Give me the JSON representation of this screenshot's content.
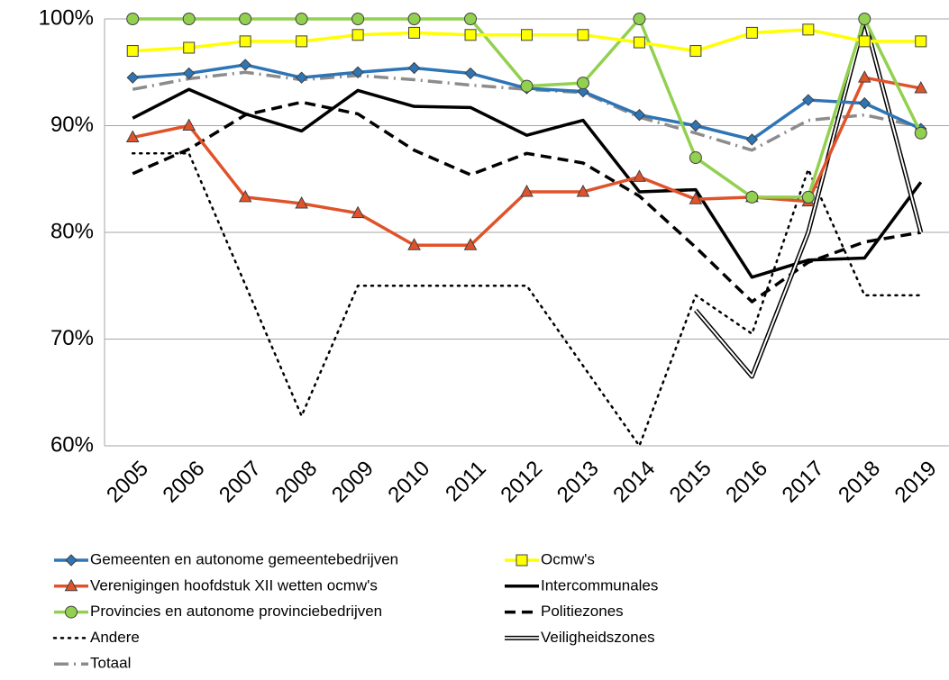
{
  "chart_data": {
    "type": "line",
    "categories": [
      "2005",
      "2006",
      "2007",
      "2008",
      "2009",
      "2010",
      "2011",
      "2012",
      "2013",
      "2014",
      "2015",
      "2016",
      "2017",
      "2018",
      "2019"
    ],
    "ylim": [
      60,
      100
    ],
    "yticks": [
      {
        "value": 60,
        "label": "60%"
      },
      {
        "value": 70,
        "label": "70%"
      },
      {
        "value": 80,
        "label": "80%"
      },
      {
        "value": 90,
        "label": "90%"
      },
      {
        "value": 100,
        "label": "100%"
      }
    ],
    "grid": true,
    "series": [
      {
        "name": "Gemeenten en autonome gemeentebedrijven",
        "color": "#2e75b6",
        "line_style": "solid",
        "marker": "diamond",
        "values": [
          94.5,
          94.9,
          95.7,
          94.5,
          95.0,
          95.4,
          94.9,
          93.5,
          93.2,
          91.0,
          90.0,
          88.7,
          92.4,
          92.1,
          89.7
        ]
      },
      {
        "name": "Ocmw's",
        "color": "#ffff00",
        "line_style": "solid",
        "marker": "square",
        "values": [
          97.0,
          97.3,
          97.9,
          97.9,
          98.5,
          98.7,
          98.5,
          98.5,
          98.5,
          97.8,
          97.0,
          98.7,
          99.0,
          97.9,
          97.9
        ]
      },
      {
        "name": "Verenigingen hoofdstuk XII wetten ocmw's",
        "color": "#e0532a",
        "line_style": "solid",
        "marker": "triangle",
        "values": [
          88.9,
          90.0,
          83.3,
          82.7,
          81.8,
          78.8,
          78.8,
          83.8,
          83.8,
          85.2,
          83.1,
          83.3,
          82.9,
          94.5,
          93.5
        ]
      },
      {
        "name": "Intercommunales",
        "color": "#000000",
        "line_style": "solid",
        "marker": "none",
        "values": [
          90.7,
          93.4,
          91.1,
          89.5,
          93.3,
          91.8,
          91.7,
          89.1,
          90.5,
          83.8,
          84.0,
          75.8,
          77.4,
          77.6,
          84.7
        ]
      },
      {
        "name": "Provincies en autonome provinciebedrijven",
        "color": "#92d050",
        "line_style": "solid",
        "marker": "circle",
        "values": [
          100,
          100,
          100,
          100,
          100,
          100,
          100,
          93.7,
          94.0,
          100,
          87.0,
          83.3,
          83.3,
          100,
          89.3
        ]
      },
      {
        "name": "Politiezones",
        "color": "#000000",
        "line_style": "dash",
        "marker": "none",
        "values": [
          85.5,
          87.8,
          91.0,
          92.2,
          91.1,
          87.7,
          85.4,
          87.4,
          86.5,
          83.4,
          78.6,
          73.5,
          77.2,
          79.1,
          80.0
        ]
      },
      {
        "name": "Andere",
        "color": "#000000",
        "line_style": "dot",
        "marker": "none",
        "values": [
          87.4,
          87.4,
          75.1,
          62.8,
          75.0,
          75.0,
          75.0,
          75.0,
          67.5,
          60.0,
          74.1,
          70.5,
          85.9,
          74.1,
          74.1
        ]
      },
      {
        "name": "Veiligheidszones",
        "color": "#000000",
        "line_style": "double",
        "marker": "none",
        "values": [
          null,
          null,
          null,
          null,
          null,
          null,
          null,
          null,
          null,
          null,
          72.7,
          66.5,
          80.0,
          100,
          80.0
        ]
      },
      {
        "name": "Totaal",
        "color": "#8c8c8c",
        "line_style": "dashdot",
        "marker": "none",
        "values": [
          93.4,
          94.4,
          95.0,
          94.3,
          94.7,
          94.3,
          93.8,
          93.4,
          93.1,
          90.8,
          89.3,
          87.7,
          90.5,
          91.0,
          89.9
        ]
      }
    ]
  }
}
